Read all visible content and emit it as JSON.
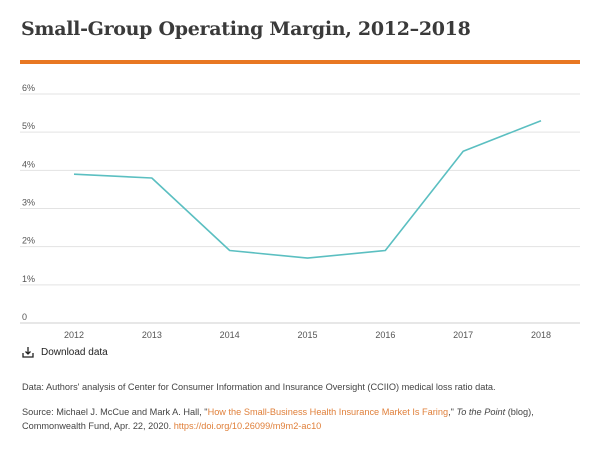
{
  "colors": {
    "accent_rule": "#e87722",
    "line": "#5bbfc1",
    "grid": "#e3e3e3",
    "link": "#e0803b"
  },
  "chart_data": {
    "type": "line",
    "title": "Small-Group Operating Margin, 2012–2018",
    "x": [
      "2012",
      "2013",
      "2014",
      "2015",
      "2016",
      "2017",
      "2018"
    ],
    "series": [
      {
        "values": [
          3.9,
          3.8,
          1.9,
          1.7,
          1.9,
          4.5,
          5.3
        ]
      }
    ],
    "ylim": [
      0,
      6
    ],
    "yticks": [
      {
        "value": 0,
        "label": "0"
      },
      {
        "value": 1,
        "label": "1%"
      },
      {
        "value": 2,
        "label": "2%"
      },
      {
        "value": 3,
        "label": "3%"
      },
      {
        "value": 4,
        "label": "4%"
      },
      {
        "value": 5,
        "label": "5%"
      },
      {
        "value": 6,
        "label": "6%"
      }
    ],
    "grid": true,
    "legend": "none"
  },
  "download": {
    "icon": "download-icon",
    "label": "Download data"
  },
  "data_note": "Data: Authors' analysis of Center for Consumer Information and Insurance Oversight (CCIIO) medical loss ratio data.",
  "source": {
    "prefix": "Source: Michael J. McCue and Mark A. Hall, \"",
    "article_title": "How the Small-Business Health Insurance Market Is Faring",
    "after_title": ",\" ",
    "publication": "To the Point",
    "middle": " (blog), Commonwealth Fund, Apr. 22, 2020. ",
    "doi": "https://doi.org/10.26099/m9m2-ac10"
  }
}
